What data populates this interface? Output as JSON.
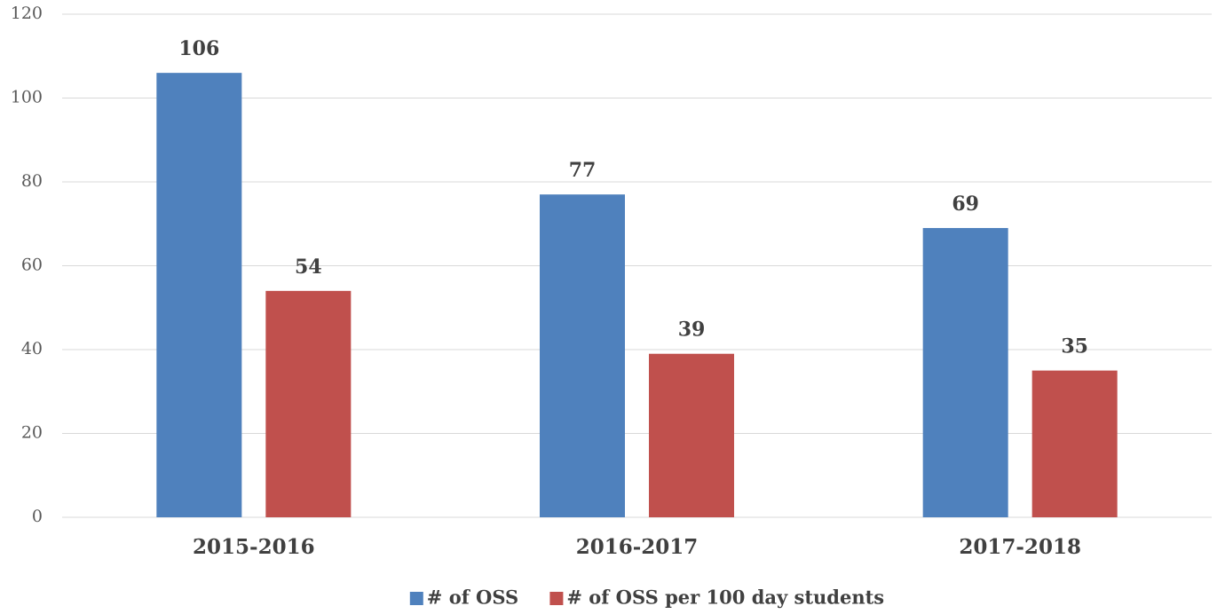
{
  "chart_data": {
    "type": "bar",
    "categories": [
      "2015-2016",
      "2016-2017",
      "2017-2018"
    ],
    "series": [
      {
        "name": "# of OSS",
        "color": "#4f81bd",
        "values": [
          106,
          77,
          69
        ]
      },
      {
        "name": "# of OSS per 100 day students",
        "color": "#c0504d",
        "values": [
          54,
          39,
          35
        ]
      }
    ],
    "ylim": [
      0,
      120
    ],
    "yticks": [
      0,
      20,
      40,
      60,
      80,
      100,
      120
    ],
    "grid": true,
    "legend": "bottom"
  }
}
